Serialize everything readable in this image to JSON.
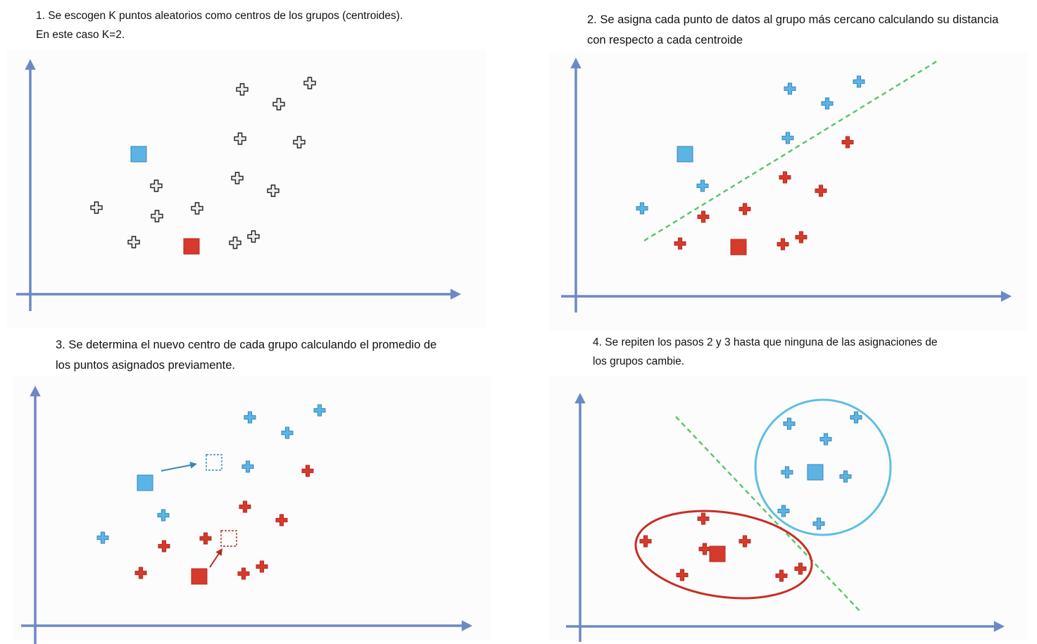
{
  "colors": {
    "axis": "#6d88c4",
    "blue": "#5bb4e5",
    "blue_dark": "#3b86b5",
    "red": "#d63a2b",
    "red_dark": "#b42b20",
    "neutral_fill": "#ececec",
    "neutral_stroke": "#222222",
    "divider": "#5dc76a",
    "cluster_blue": "#5fbfe0",
    "cluster_red": "#c82d23"
  },
  "panels": [
    {
      "caption": [
        "1. Se escogen K puntos aleatorios como centros de los grupos (centroides).",
        "En este caso K=2."
      ]
    },
    {
      "caption": [
        "2. Se asigna cada punto de datos al grupo más cercano calculando su distancia",
        "con respecto a cada centroide"
      ]
    },
    {
      "caption": [
        "3. Se determina el nuevo centro de cada grupo calculando el promedio de",
        "los puntos asignados previamente."
      ]
    },
    {
      "caption": [
        "4. Se repiten los pasos 2 y 3 hasta que ninguna de las asignaciones de",
        "los grupos cambie."
      ]
    }
  ],
  "icons": {
    "data_point": "plus-cross-icon",
    "centroid": "square-icon",
    "new_centroid": "dashed-square-icon",
    "move": "arrow-icon"
  }
}
